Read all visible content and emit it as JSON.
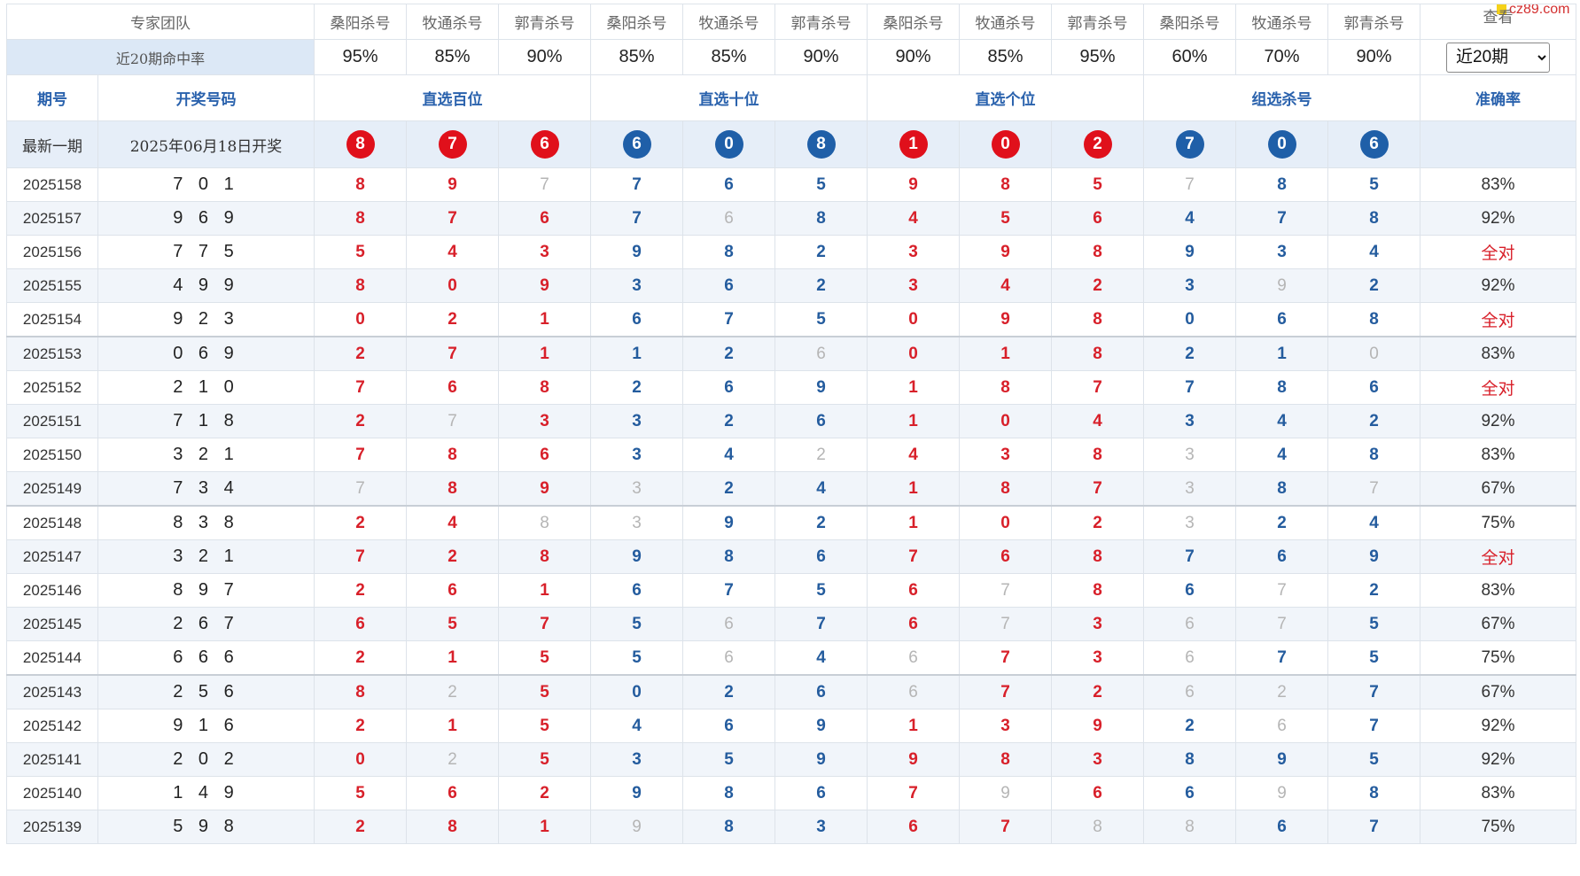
{
  "site_logo": "cz89.com",
  "header": {
    "team_label": "专家团队",
    "experts": [
      "桑阳杀号",
      "牧通杀号",
      "郭青杀号",
      "桑阳杀号",
      "牧通杀号",
      "郭青杀号",
      "桑阳杀号",
      "牧通杀号",
      "郭青杀号",
      "桑阳杀号",
      "牧通杀号",
      "郭青杀号"
    ],
    "view_label": "查看",
    "rate_label": "近20期命中率",
    "rates": [
      "95%",
      "85%",
      "90%",
      "85%",
      "85%",
      "90%",
      "90%",
      "85%",
      "95%",
      "60%",
      "70%",
      "90%"
    ],
    "period_select": "近20期",
    "period_options": [
      "近20期"
    ]
  },
  "columns": {
    "issue": "期号",
    "winning": "开奖号码",
    "groups": [
      "直选百位",
      "直选十位",
      "直选个位",
      "组选杀号"
    ],
    "accuracy": "准确率"
  },
  "latest": {
    "label": "最新一期",
    "date": "2025年06月18日开奖",
    "balls": [
      {
        "n": "8",
        "color": "red"
      },
      {
        "n": "7",
        "color": "red"
      },
      {
        "n": "6",
        "color": "red"
      },
      {
        "n": "6",
        "color": "blue"
      },
      {
        "n": "0",
        "color": "blue"
      },
      {
        "n": "8",
        "color": "blue"
      },
      {
        "n": "1",
        "color": "red"
      },
      {
        "n": "0",
        "color": "red"
      },
      {
        "n": "2",
        "color": "red"
      },
      {
        "n": "7",
        "color": "blue"
      },
      {
        "n": "0",
        "color": "blue"
      },
      {
        "n": "6",
        "color": "blue"
      }
    ]
  },
  "colors": {
    "red": "#d8202a",
    "blue": "#245c9e",
    "miss": "#b5b5b5",
    "header_blue": "#2a62ad"
  },
  "rows": [
    {
      "issue": "2025158",
      "win": "7 0 1",
      "acc": "83%",
      "nums": [
        "8",
        "9",
        "7",
        "7",
        "6",
        "5",
        "9",
        "8",
        "5",
        "7",
        "8",
        "5"
      ],
      "miss": [
        2,
        9
      ]
    },
    {
      "issue": "2025157",
      "win": "9 6 9",
      "acc": "92%",
      "nums": [
        "8",
        "7",
        "6",
        "7",
        "6",
        "8",
        "4",
        "5",
        "6",
        "4",
        "7",
        "8"
      ],
      "miss": [
        4
      ]
    },
    {
      "issue": "2025156",
      "win": "7 7 5",
      "acc": "全对",
      "nums": [
        "5",
        "4",
        "3",
        "9",
        "8",
        "2",
        "3",
        "9",
        "8",
        "9",
        "3",
        "4"
      ],
      "miss": []
    },
    {
      "issue": "2025155",
      "win": "4 9 9",
      "acc": "92%",
      "nums": [
        "8",
        "0",
        "9",
        "3",
        "6",
        "2",
        "3",
        "4",
        "2",
        "3",
        "9",
        "2"
      ],
      "miss": [
        10
      ]
    },
    {
      "issue": "2025154",
      "win": "9 2 3",
      "acc": "全对",
      "nums": [
        "0",
        "2",
        "1",
        "6",
        "7",
        "5",
        "0",
        "9",
        "8",
        "0",
        "6",
        "8"
      ],
      "miss": []
    },
    {
      "issue": "2025153",
      "win": "0 6 9",
      "acc": "83%",
      "nums": [
        "2",
        "7",
        "1",
        "1",
        "2",
        "6",
        "0",
        "1",
        "8",
        "2",
        "1",
        "0"
      ],
      "miss": [
        5,
        11
      ]
    },
    {
      "issue": "2025152",
      "win": "2 1 0",
      "acc": "全对",
      "nums": [
        "7",
        "6",
        "8",
        "2",
        "6",
        "9",
        "1",
        "8",
        "7",
        "7",
        "8",
        "6"
      ],
      "miss": []
    },
    {
      "issue": "2025151",
      "win": "7 1 8",
      "acc": "92%",
      "nums": [
        "2",
        "7",
        "3",
        "3",
        "2",
        "6",
        "1",
        "0",
        "4",
        "3",
        "4",
        "2"
      ],
      "miss": [
        1
      ]
    },
    {
      "issue": "2025150",
      "win": "3 2 1",
      "acc": "83%",
      "nums": [
        "7",
        "8",
        "6",
        "3",
        "4",
        "2",
        "4",
        "3",
        "8",
        "3",
        "4",
        "8"
      ],
      "miss": [
        5,
        9
      ]
    },
    {
      "issue": "2025149",
      "win": "7 3 4",
      "acc": "67%",
      "nums": [
        "7",
        "8",
        "9",
        "3",
        "2",
        "4",
        "1",
        "8",
        "7",
        "3",
        "8",
        "7"
      ],
      "miss": [
        0,
        3,
        9,
        11
      ]
    },
    {
      "issue": "2025148",
      "win": "8 3 8",
      "acc": "75%",
      "nums": [
        "2",
        "4",
        "8",
        "3",
        "9",
        "2",
        "1",
        "0",
        "2",
        "3",
        "2",
        "4"
      ],
      "miss": [
        2,
        3,
        9
      ]
    },
    {
      "issue": "2025147",
      "win": "3 2 1",
      "acc": "全对",
      "nums": [
        "7",
        "2",
        "8",
        "9",
        "8",
        "6",
        "7",
        "6",
        "8",
        "7",
        "6",
        "9"
      ],
      "miss": []
    },
    {
      "issue": "2025146",
      "win": "8 9 7",
      "acc": "83%",
      "nums": [
        "2",
        "6",
        "1",
        "6",
        "7",
        "5",
        "6",
        "7",
        "8",
        "6",
        "7",
        "2"
      ],
      "miss": [
        7,
        10
      ]
    },
    {
      "issue": "2025145",
      "win": "2 6 7",
      "acc": "67%",
      "nums": [
        "6",
        "5",
        "7",
        "5",
        "6",
        "7",
        "6",
        "7",
        "3",
        "6",
        "7",
        "5"
      ],
      "miss": [
        4,
        7,
        9,
        10
      ]
    },
    {
      "issue": "2025144",
      "win": "6 6 6",
      "acc": "75%",
      "nums": [
        "2",
        "1",
        "5",
        "5",
        "6",
        "4",
        "6",
        "7",
        "3",
        "6",
        "7",
        "5"
      ],
      "miss": [
        4,
        6,
        9
      ]
    },
    {
      "issue": "2025143",
      "win": "2 5 6",
      "acc": "67%",
      "nums": [
        "8",
        "2",
        "5",
        "0",
        "2",
        "6",
        "6",
        "7",
        "2",
        "6",
        "2",
        "7"
      ],
      "miss": [
        1,
        6,
        9,
        10
      ]
    },
    {
      "issue": "2025142",
      "win": "9 1 6",
      "acc": "92%",
      "nums": [
        "2",
        "1",
        "5",
        "4",
        "6",
        "9",
        "1",
        "3",
        "9",
        "2",
        "6",
        "7"
      ],
      "miss": [
        10
      ]
    },
    {
      "issue": "2025141",
      "win": "2 0 2",
      "acc": "92%",
      "nums": [
        "0",
        "2",
        "5",
        "3",
        "5",
        "9",
        "9",
        "8",
        "3",
        "8",
        "9",
        "5"
      ],
      "miss": [
        1
      ]
    },
    {
      "issue": "2025140",
      "win": "1 4 9",
      "acc": "83%",
      "nums": [
        "5",
        "6",
        "2",
        "9",
        "8",
        "6",
        "7",
        "9",
        "6",
        "6",
        "9",
        "8"
      ],
      "miss": [
        7,
        10
      ]
    },
    {
      "issue": "2025139",
      "win": "5 9 8",
      "acc": "75%",
      "nums": [
        "2",
        "8",
        "1",
        "9",
        "8",
        "3",
        "6",
        "7",
        "8",
        "8",
        "6",
        "7"
      ],
      "miss": [
        3,
        8,
        9
      ]
    }
  ]
}
